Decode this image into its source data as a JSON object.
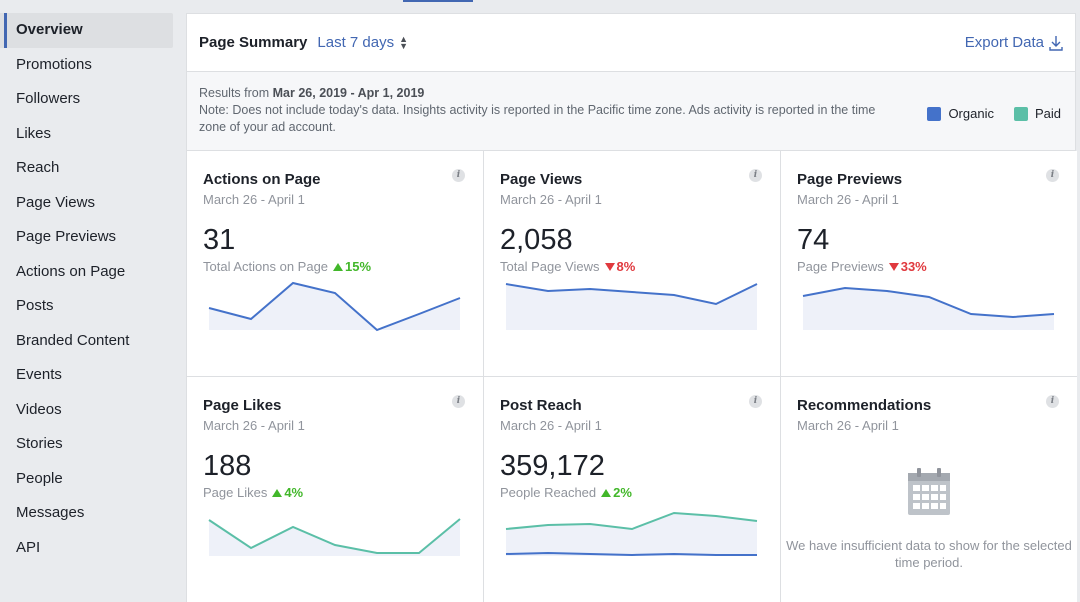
{
  "sidebar": {
    "items": [
      {
        "label": "Overview",
        "active": true
      },
      {
        "label": "Promotions"
      },
      {
        "label": "Followers"
      },
      {
        "label": "Likes"
      },
      {
        "label": "Reach"
      },
      {
        "label": "Page Views"
      },
      {
        "label": "Page Previews"
      },
      {
        "label": "Actions on Page"
      },
      {
        "label": "Posts"
      },
      {
        "label": "Branded Content"
      },
      {
        "label": "Events"
      },
      {
        "label": "Videos"
      },
      {
        "label": "Stories"
      },
      {
        "label": "People"
      },
      {
        "label": "Messages"
      },
      {
        "label": "API"
      }
    ]
  },
  "header": {
    "title": "Page Summary",
    "range": "Last 7 days",
    "export": "Export Data"
  },
  "notice": {
    "results_prefix": "Results from",
    "results_range": "Mar 26, 2019 - Apr 1, 2019",
    "note": "Note: Does not include today's data. Insights activity is reported in the Pacific time zone. Ads activity is reported in the time zone of your ad account."
  },
  "legend": [
    {
      "label": "Organic",
      "color": "#4472ca"
    },
    {
      "label": "Paid",
      "color": "#5bbfa7"
    }
  ],
  "colors": {
    "accent": "#4267b2",
    "organic_line": "#4472ca",
    "paid_line": "#5bbfa7",
    "up": "#42b72a",
    "down": "#e0393e"
  },
  "cards": [
    {
      "title": "Actions on Page",
      "date": "March 26 - April 1",
      "value": "31",
      "metric": "Total Actions on Page",
      "change": "15%",
      "direction": "up"
    },
    {
      "title": "Page Views",
      "date": "March 26 - April 1",
      "value": "2,058",
      "metric": "Total Page Views",
      "change": "8%",
      "direction": "down"
    },
    {
      "title": "Page Previews",
      "date": "March 26 - April 1",
      "value": "74",
      "metric": "Page Previews",
      "change": "33%",
      "direction": "down"
    },
    {
      "title": "Page Likes",
      "date": "March 26 - April 1",
      "value": "188",
      "metric": "Page Likes",
      "change": "4%",
      "direction": "up"
    },
    {
      "title": "Post Reach",
      "date": "March 26 - April 1",
      "value": "359,172",
      "metric": "People Reached",
      "change": "2%",
      "direction": "up"
    },
    {
      "title": "Recommendations",
      "date": "March 26 - April 1",
      "empty_message": "We have insufficient data to show for the selected time period."
    }
  ]
}
